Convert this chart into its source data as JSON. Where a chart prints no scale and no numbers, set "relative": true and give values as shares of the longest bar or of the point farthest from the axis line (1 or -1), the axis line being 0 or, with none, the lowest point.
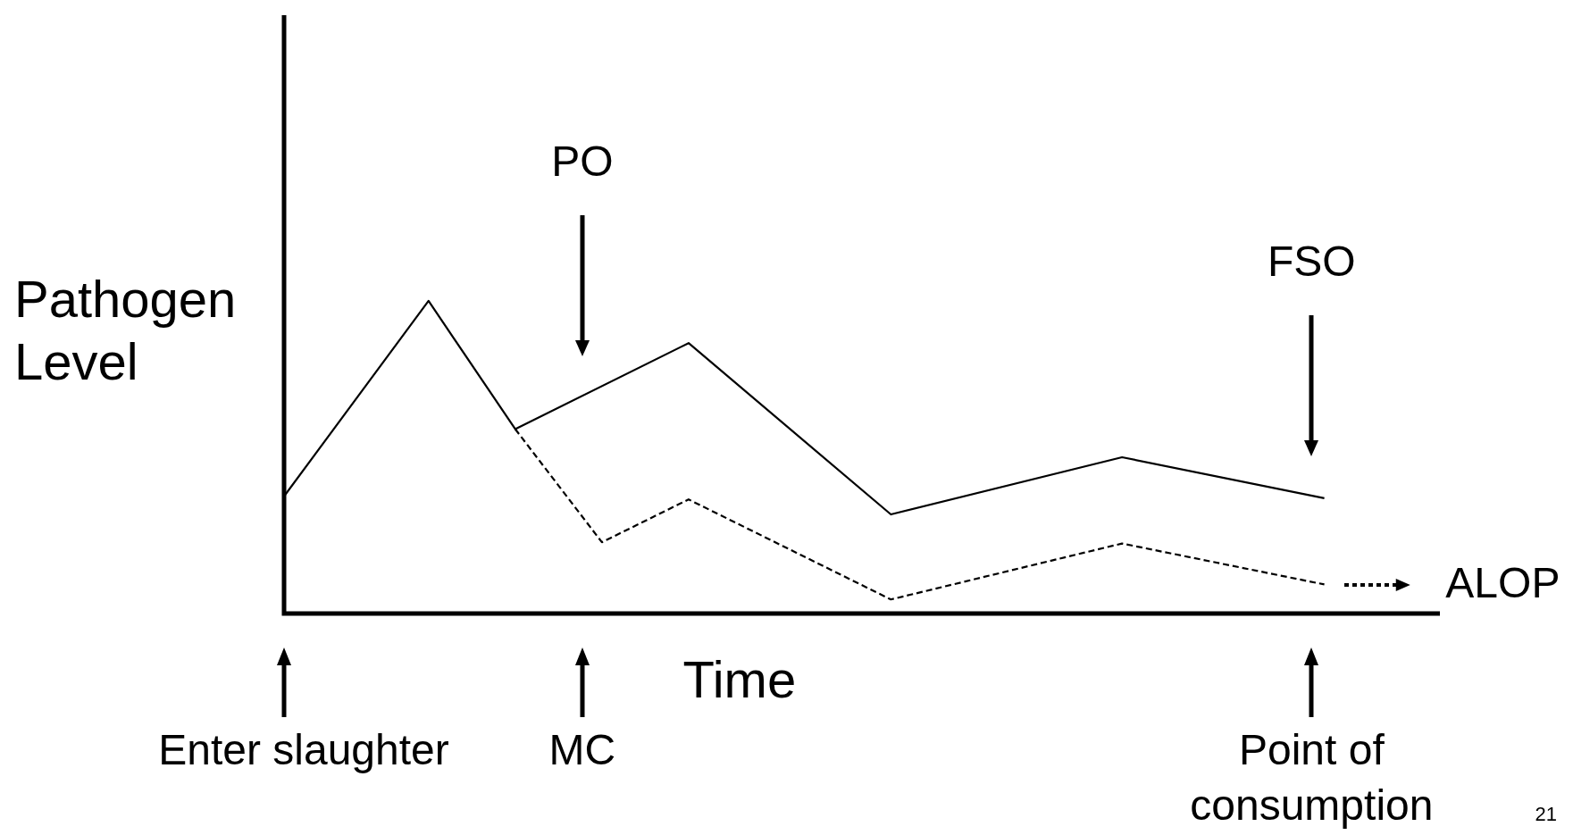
{
  "chart_data": {
    "type": "line",
    "xlabel": "Time",
    "ylabel": "Pathogen Level",
    "relative": true,
    "tick_labels": false,
    "categories": [
      null,
      null,
      null,
      null,
      null,
      null,
      null,
      null,
      null,
      null,
      null,
      null,
      null,
      null,
      null,
      null,
      null,
      null,
      null,
      null,
      null,
      null,
      null,
      null,
      null,
      null,
      null,
      null,
      null,
      null,
      null,
      null,
      null,
      null,
      null,
      null,
      null,
      null,
      null,
      null,
      null
    ],
    "series": [
      {
        "color": "#000000",
        "line_style": "solid",
        "values": [
          0.375,
          null,
          null,
          null,
          null,
          1,
          null,
          null,
          0.59,
          null,
          null,
          null,
          null,
          null,
          0.865,
          null,
          null,
          null,
          null,
          null,
          null,
          0.317,
          null,
          null,
          null,
          null,
          null,
          null,
          null,
          0.5,
          null,
          null,
          null,
          null,
          null,
          null,
          0.369,
          null,
          null,
          null,
          null
        ]
      },
      {
        "color": "#000000",
        "line_style": "dashed",
        "values": [
          null,
          null,
          null,
          null,
          null,
          null,
          null,
          null,
          0.59,
          null,
          null,
          0.228,
          null,
          null,
          0.365,
          null,
          null,
          null,
          null,
          null,
          null,
          0.045,
          null,
          null,
          null,
          null,
          null,
          null,
          null,
          0.224,
          null,
          null,
          null,
          null,
          null,
          null,
          0.093,
          null,
          null,
          null,
          null
        ]
      }
    ],
    "annotations": [
      "PO",
      "FSO",
      "ALOP",
      "Enter slaughter",
      "MC",
      "Point of consumption",
      "21"
    ]
  }
}
